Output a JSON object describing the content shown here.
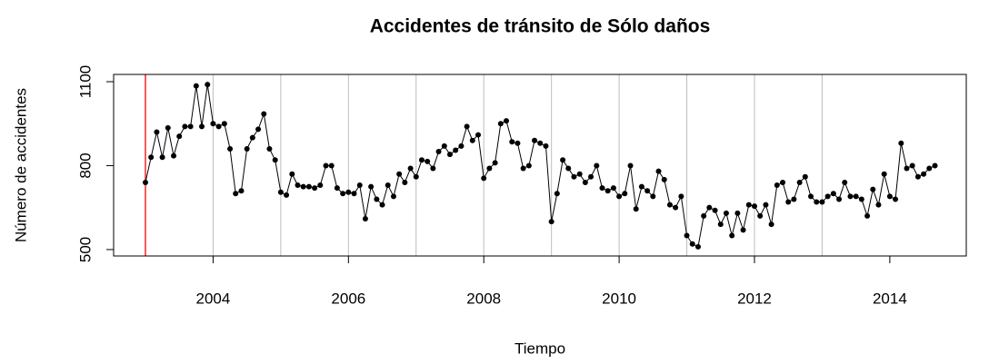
{
  "chart_data": {
    "type": "line",
    "title": "Accidentes de tránsito de Sólo daños",
    "x_label": "Tiempo",
    "y_label": "Número de accidentes",
    "x": [
      2003,
      2003.083,
      2003.167,
      2003.25,
      2003.333,
      2003.417,
      2003.5,
      2003.583,
      2003.667,
      2003.75,
      2003.833,
      2003.917,
      2004,
      2004.083,
      2004.167,
      2004.25,
      2004.333,
      2004.417,
      2004.5,
      2004.583,
      2004.667,
      2004.75,
      2004.833,
      2004.917,
      2005,
      2005.083,
      2005.167,
      2005.25,
      2005.333,
      2005.417,
      2005.5,
      2005.583,
      2005.667,
      2005.75,
      2005.833,
      2005.917,
      2006,
      2006.083,
      2006.167,
      2006.25,
      2006.333,
      2006.417,
      2006.5,
      2006.583,
      2006.667,
      2006.75,
      2006.833,
      2006.917,
      2007,
      2007.083,
      2007.167,
      2007.25,
      2007.333,
      2007.417,
      2007.5,
      2007.583,
      2007.667,
      2007.75,
      2007.833,
      2007.917,
      2008,
      2008.083,
      2008.167,
      2008.25,
      2008.333,
      2008.417,
      2008.5,
      2008.583,
      2008.667,
      2008.75,
      2008.833,
      2008.917,
      2009,
      2009.083,
      2009.167,
      2009.25,
      2009.333,
      2009.417,
      2009.5,
      2009.583,
      2009.667,
      2009.75,
      2009.833,
      2009.917,
      2010,
      2010.083,
      2010.167,
      2010.25,
      2010.333,
      2010.417,
      2010.5,
      2010.583,
      2010.667,
      2010.75,
      2010.833,
      2010.917,
      2011,
      2011.083,
      2011.167,
      2011.25,
      2011.333,
      2011.417,
      2011.5,
      2011.583,
      2011.667,
      2011.75,
      2011.833,
      2011.917,
      2012,
      2012.083,
      2012.167,
      2012.25,
      2012.333,
      2012.417,
      2012.5,
      2012.583,
      2012.667,
      2012.75,
      2012.833,
      2012.917,
      2013,
      2013.083,
      2013.167,
      2013.25,
      2013.333,
      2013.417,
      2013.5,
      2013.583,
      2013.667,
      2013.75,
      2013.833,
      2013.917,
      2014,
      2014.083,
      2014.167,
      2014.25,
      2014.333,
      2014.417,
      2014.5,
      2014.583,
      2014.667
    ],
    "values": [
      740,
      830,
      920,
      830,
      935,
      835,
      905,
      940,
      940,
      1085,
      940,
      1090,
      950,
      940,
      950,
      860,
      700,
      710,
      860,
      900,
      930,
      985,
      860,
      820,
      705,
      695,
      770,
      730,
      725,
      725,
      720,
      730,
      800,
      800,
      720,
      700,
      705,
      700,
      730,
      610,
      725,
      680,
      660,
      730,
      690,
      770,
      740,
      790,
      760,
      820,
      815,
      790,
      850,
      870,
      840,
      855,
      870,
      940,
      890,
      910,
      755,
      790,
      810,
      950,
      960,
      885,
      880,
      790,
      800,
      890,
      880,
      870,
      600,
      700,
      820,
      790,
      760,
      770,
      740,
      760,
      800,
      720,
      710,
      720,
      690,
      700,
      800,
      645,
      725,
      710,
      690,
      780,
      750,
      660,
      650,
      690,
      550,
      520,
      510,
      620,
      650,
      640,
      590,
      630,
      550,
      630,
      570,
      660,
      655,
      620,
      660,
      590,
      730,
      740,
      670,
      680,
      740,
      760,
      690,
      670,
      670,
      690,
      700,
      680,
      740,
      690,
      690,
      680,
      620,
      715,
      660,
      770,
      690,
      680,
      880,
      790,
      800,
      760,
      770,
      790,
      800
    ],
    "color": "#000000",
    "xlim": [
      2002.53,
      2015.13
    ],
    "ylim": [
      477,
      1126
    ],
    "xticks": [
      2004,
      2006,
      2008,
      2010,
      2012,
      2014
    ],
    "yticks": [
      500,
      800,
      1100
    ],
    "vlines": [
      2004,
      2005,
      2006,
      2007,
      2008,
      2009,
      2010,
      2011,
      2012,
      2013
    ],
    "vline_color": "#bebebe",
    "marker_line": 2003,
    "marker_line_color": "#ff0000"
  }
}
